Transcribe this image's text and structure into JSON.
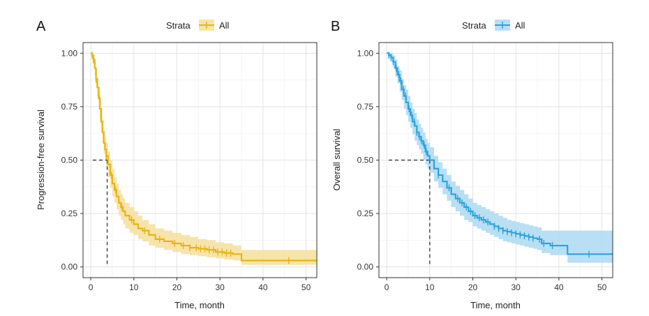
{
  "chart_data": [
    {
      "type": "line",
      "panel_label": "A",
      "legend_title": "Strata",
      "legend_entry": "All",
      "color": "#e6b514",
      "band_color": "#f6df9c",
      "xlabel": "Time, month",
      "ylabel": "Progression-free survival",
      "xlim": [
        -1.8,
        52.5
      ],
      "ylim": [
        -0.05,
        1.05
      ],
      "xticks": [
        0,
        10,
        20,
        30,
        40,
        50
      ],
      "yticks": [
        0.0,
        0.25,
        0.5,
        0.75,
        1.0
      ],
      "ytick_labels": [
        "0.00",
        "0.25",
        "0.50",
        "0.75",
        "1.00"
      ],
      "median": 3.8,
      "series": [
        {
          "name": "All",
          "x": [
            0,
            0.3,
            0.6,
            0.9,
            1.2,
            1.5,
            1.8,
            2.1,
            2.4,
            2.7,
            3.0,
            3.3,
            3.6,
            4.0,
            4.5,
            5.0,
            5.5,
            6.0,
            6.5,
            7.0,
            7.5,
            8.0,
            9.0,
            10.0,
            11.0,
            12.0,
            13.5,
            15.0,
            17.0,
            19.0,
            21.0,
            23.0,
            25.0,
            27.0,
            29.0,
            31.0,
            33.0,
            35.0,
            37.0,
            40.0,
            45.0,
            50.0,
            52.5
          ],
          "y": [
            1.0,
            0.99,
            0.97,
            0.93,
            0.88,
            0.84,
            0.79,
            0.74,
            0.68,
            0.63,
            0.58,
            0.55,
            0.52,
            0.48,
            0.43,
            0.39,
            0.36,
            0.33,
            0.3,
            0.28,
            0.26,
            0.24,
            0.22,
            0.2,
            0.18,
            0.17,
            0.15,
            0.13,
            0.12,
            0.11,
            0.1,
            0.09,
            0.085,
            0.08,
            0.07,
            0.065,
            0.06,
            0.03,
            0.03,
            0.03,
            0.03,
            0.03,
            0.03
          ],
          "lower": [
            1.0,
            0.98,
            0.95,
            0.9,
            0.85,
            0.8,
            0.74,
            0.69,
            0.63,
            0.58,
            0.53,
            0.5,
            0.47,
            0.42,
            0.37,
            0.33,
            0.3,
            0.27,
            0.24,
            0.22,
            0.2,
            0.18,
            0.16,
            0.15,
            0.13,
            0.12,
            0.1,
            0.09,
            0.08,
            0.07,
            0.06,
            0.055,
            0.05,
            0.045,
            0.04,
            0.035,
            0.03,
            0.01,
            0.01,
            0.01,
            0.01,
            0.01,
            0.01
          ],
          "upper": [
            1.0,
            1.0,
            0.99,
            0.96,
            0.92,
            0.88,
            0.84,
            0.79,
            0.74,
            0.69,
            0.64,
            0.61,
            0.58,
            0.54,
            0.5,
            0.46,
            0.42,
            0.39,
            0.36,
            0.34,
            0.32,
            0.3,
            0.28,
            0.26,
            0.24,
            0.22,
            0.2,
            0.18,
            0.17,
            0.16,
            0.15,
            0.14,
            0.13,
            0.125,
            0.115,
            0.11,
            0.1,
            0.08,
            0.08,
            0.08,
            0.08,
            0.08,
            0.08
          ],
          "censor_x": [
            0.3,
            0.6,
            1.2,
            2.0,
            3.6,
            4.8,
            5.8,
            7.2,
            9.5,
            12.5,
            16.0,
            19.5,
            21.5,
            23.0,
            24.5,
            25.5,
            26.5,
            27.5,
            28.5,
            29.5,
            30.5,
            31.5,
            32.5,
            46.0
          ]
        }
      ]
    },
    {
      "type": "line",
      "panel_label": "B",
      "legend_title": "Strata",
      "legend_entry": "All",
      "color": "#2ea3dd",
      "band_color": "#abd9f2",
      "xlabel": "Time, month",
      "ylabel": "Overall survival",
      "xlim": [
        -1.8,
        52.5
      ],
      "ylim": [
        -0.05,
        1.05
      ],
      "xticks": [
        0,
        10,
        20,
        30,
        40,
        50
      ],
      "yticks": [
        0.0,
        0.25,
        0.5,
        0.75,
        1.0
      ],
      "ytick_labels": [
        "0.00",
        "0.25",
        "0.50",
        "0.75",
        "1.00"
      ],
      "median": 10.0,
      "series": [
        {
          "name": "All",
          "x": [
            0,
            0.5,
            1.0,
            1.5,
            2.0,
            2.5,
            3.0,
            3.5,
            4.0,
            4.5,
            5.0,
            5.5,
            6.0,
            6.5,
            7.0,
            7.5,
            8.0,
            8.5,
            9.0,
            9.5,
            10.0,
            11.0,
            12.0,
            13.0,
            14.0,
            15.0,
            16.0,
            17.0,
            18.0,
            19.0,
            20.0,
            21.0,
            22.0,
            23.0,
            24.0,
            25.0,
            26.0,
            27.0,
            28.0,
            29.0,
            30.0,
            31.0,
            32.0,
            33.0,
            34.0,
            35.0,
            36.0,
            38.0,
            40.0,
            42.0,
            44.0,
            47.0,
            50.0,
            52.5
          ],
          "y": [
            1.0,
            0.99,
            0.98,
            0.96,
            0.93,
            0.9,
            0.87,
            0.83,
            0.8,
            0.77,
            0.74,
            0.71,
            0.68,
            0.66,
            0.63,
            0.61,
            0.59,
            0.57,
            0.54,
            0.52,
            0.5,
            0.46,
            0.43,
            0.4,
            0.37,
            0.34,
            0.32,
            0.3,
            0.28,
            0.26,
            0.24,
            0.23,
            0.22,
            0.21,
            0.2,
            0.19,
            0.18,
            0.17,
            0.165,
            0.16,
            0.155,
            0.15,
            0.145,
            0.14,
            0.135,
            0.13,
            0.11,
            0.1,
            0.1,
            0.06,
            0.06,
            0.06,
            0.06,
            0.06
          ],
          "lower": [
            1.0,
            0.98,
            0.96,
            0.93,
            0.89,
            0.86,
            0.82,
            0.78,
            0.74,
            0.71,
            0.68,
            0.65,
            0.62,
            0.59,
            0.57,
            0.55,
            0.53,
            0.5,
            0.48,
            0.46,
            0.44,
            0.4,
            0.37,
            0.34,
            0.31,
            0.28,
            0.26,
            0.24,
            0.22,
            0.21,
            0.19,
            0.18,
            0.17,
            0.16,
            0.15,
            0.14,
            0.13,
            0.12,
            0.115,
            0.11,
            0.105,
            0.1,
            0.095,
            0.09,
            0.085,
            0.08,
            0.065,
            0.055,
            0.055,
            0.02,
            0.02,
            0.02,
            0.02,
            0.02
          ],
          "upper": [
            1.0,
            1.0,
            1.0,
            0.99,
            0.97,
            0.94,
            0.92,
            0.88,
            0.85,
            0.83,
            0.8,
            0.77,
            0.74,
            0.72,
            0.69,
            0.67,
            0.65,
            0.63,
            0.6,
            0.58,
            0.56,
            0.52,
            0.49,
            0.46,
            0.43,
            0.4,
            0.38,
            0.36,
            0.34,
            0.32,
            0.3,
            0.29,
            0.28,
            0.27,
            0.26,
            0.25,
            0.24,
            0.23,
            0.22,
            0.215,
            0.21,
            0.205,
            0.2,
            0.195,
            0.19,
            0.185,
            0.17,
            0.17,
            0.17,
            0.17,
            0.17,
            0.17,
            0.17,
            0.17
          ],
          "censor_x": [
            0.5,
            1.0,
            1.5,
            2.2,
            2.8,
            3.3,
            3.9,
            4.4,
            5.2,
            5.8,
            6.4,
            7.0,
            7.6,
            8.1,
            8.7,
            9.2,
            12.0,
            14.5,
            16.5,
            17.5,
            18.5,
            19.5,
            20.5,
            21.5,
            22.5,
            23.5,
            25.0,
            26.0,
            27.0,
            28.0,
            29.0,
            30.0,
            31.0,
            32.0,
            33.0,
            34.0,
            35.5,
            36.5,
            38.5,
            47.0
          ]
        }
      ]
    }
  ]
}
